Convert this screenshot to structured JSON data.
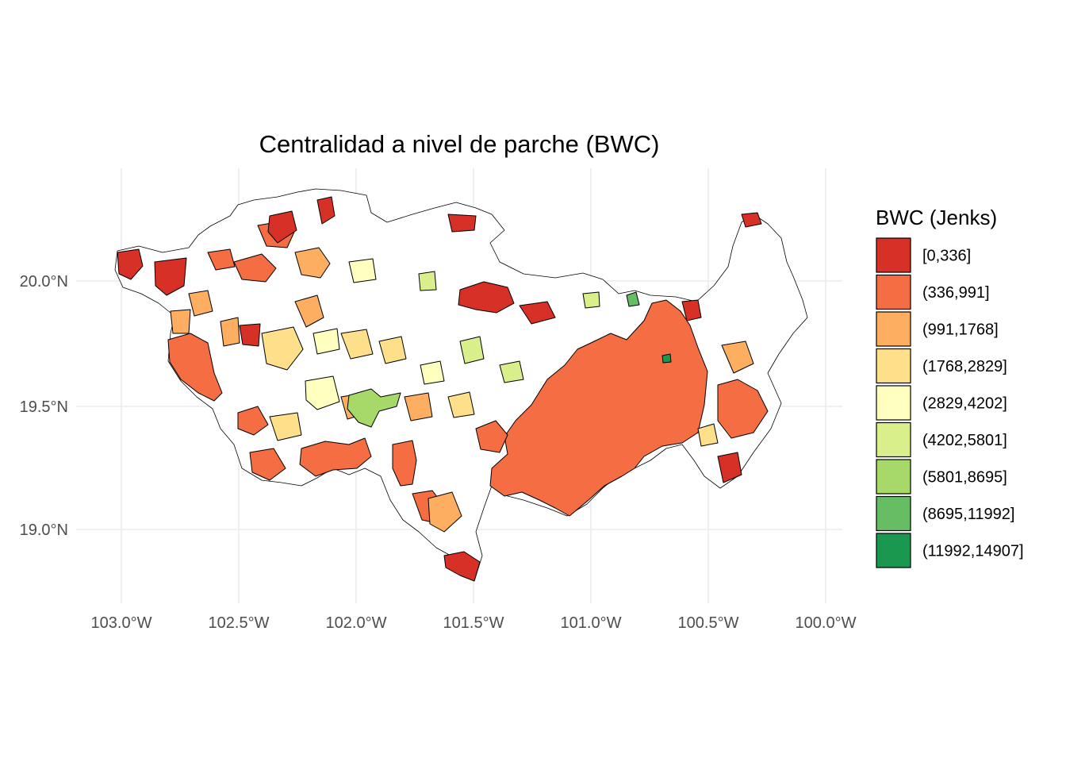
{
  "title": "Centralidad a nivel de parche (BWC)",
  "axes": {
    "x_ticks": [
      "103.0°W",
      "102.5°W",
      "102.0°W",
      "101.5°W",
      "101.0°W",
      "100.5°W",
      "100.0°W"
    ],
    "y_ticks": [
      "20.0°N",
      "19.5°N",
      "19.0°N"
    ]
  },
  "legend": {
    "title": "BWC (Jenks)",
    "classes": [
      {
        "label": "[0,336]",
        "color": "#d73027"
      },
      {
        "label": "(336,991]",
        "color": "#f46d43"
      },
      {
        "label": "(991,1768]",
        "color": "#fdae61"
      },
      {
        "label": "(1768,2829]",
        "color": "#fee08b"
      },
      {
        "label": "(2829,4202]",
        "color": "#ffffbf"
      },
      {
        "label": "(4202,5801]",
        "color": "#d9ef8b"
      },
      {
        "label": "(5801,8695]",
        "color": "#a6d96a"
      },
      {
        "label": "(8695,11992]",
        "color": "#66bd63"
      },
      {
        "label": "(11992,14907]",
        "color": "#1a9850"
      }
    ]
  }
}
